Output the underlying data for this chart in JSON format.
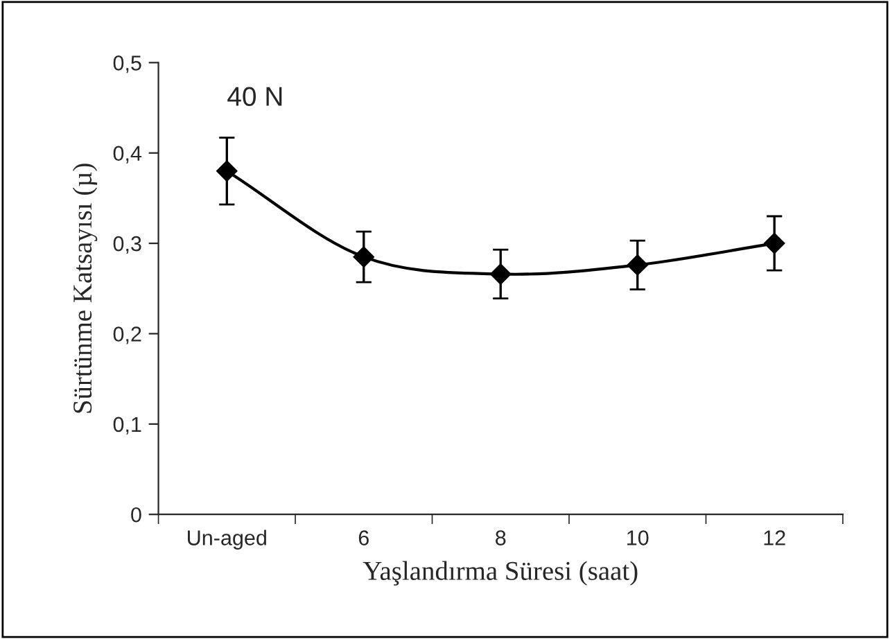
{
  "chart_data": {
    "type": "line",
    "xlabel": "Yaşlandırma Süresi (saat)",
    "ylabel": "Sürtünme Katsayısı (µ)",
    "categories": [
      "Un-aged",
      "6",
      "8",
      "10",
      "12"
    ],
    "series": [
      {
        "color": "#000000",
        "values": [
          0.38,
          0.285,
          0.266,
          0.276,
          0.3
        ],
        "errors": [
          0.037,
          0.028,
          0.027,
          0.027,
          0.03
        ]
      }
    ],
    "ylim": [
      0,
      0.5
    ],
    "yticks": [
      {
        "value": 0,
        "label": "0"
      },
      {
        "value": 0.1,
        "label": "0,1"
      },
      {
        "value": 0.2,
        "label": "0,2"
      },
      {
        "value": 0.3,
        "label": "0,3"
      },
      {
        "value": 0.4,
        "label": "0,4"
      },
      {
        "value": 0.5,
        "label": "0,5"
      }
    ],
    "annotations": [
      "40 N"
    ],
    "marker": "diamond",
    "line_style": "solid",
    "grid": false,
    "legend": false
  }
}
